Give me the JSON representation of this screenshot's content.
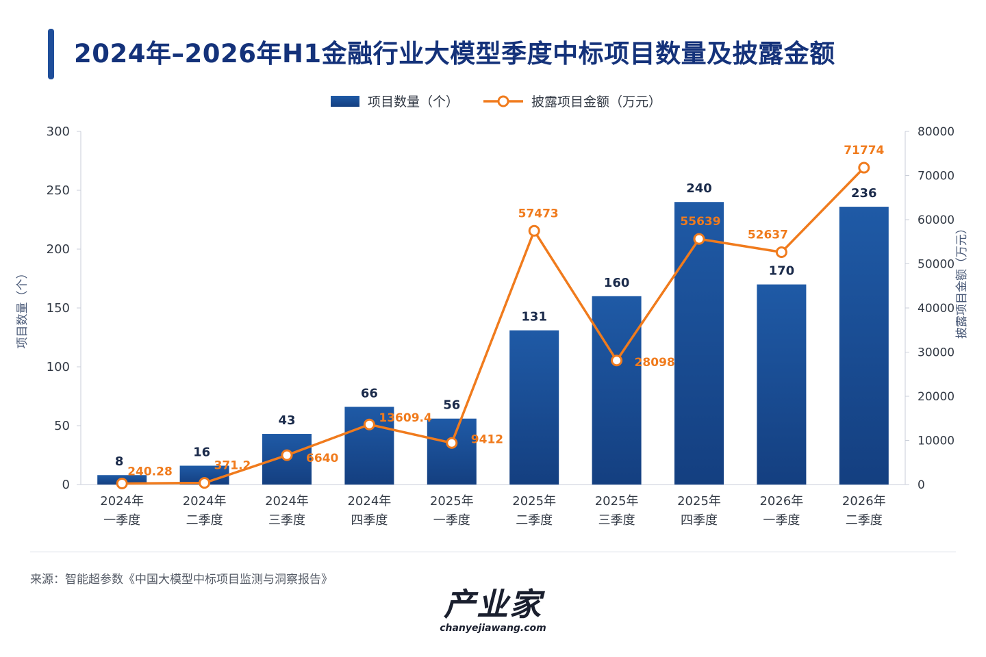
{
  "title": "2024年–2026年H1金融行业大模型季度中标项目数量及披露金额",
  "source": "来源：智能超参数《中国大模型中标项目监测与洞察报告》",
  "logo": {
    "main": "产业家",
    "sub": "chanyejiawang.com"
  },
  "colors": {
    "bar": "#1f5aa6",
    "bar_dark": "#143f80",
    "line": "#f07b1d",
    "axis_text": "#333a45",
    "grid": "#dfe3ea"
  },
  "chart_data": {
    "type": "bar",
    "categories": [
      [
        "2024年",
        "一季度"
      ],
      [
        "2024年",
        "二季度"
      ],
      [
        "2024年",
        "三季度"
      ],
      [
        "2024年",
        "四季度"
      ],
      [
        "2025年",
        "一季度"
      ],
      [
        "2025年",
        "二季度"
      ],
      [
        "2025年",
        "三季度"
      ],
      [
        "2025年",
        "四季度"
      ],
      [
        "2026年",
        "一季度"
      ],
      [
        "2026年",
        "二季度"
      ]
    ],
    "legend_placement": "top-center",
    "series": [
      {
        "name": "项目数量（个）",
        "type": "bar",
        "axis": "left",
        "values": [
          8,
          16,
          43,
          66,
          56,
          131,
          160,
          240,
          170,
          236
        ],
        "labels": [
          "8",
          "16",
          "43",
          "66",
          "56",
          "131",
          "160",
          "240",
          "170",
          "236"
        ]
      },
      {
        "name": "披露项目金额（万元）",
        "type": "line",
        "axis": "right",
        "values": [
          240.28,
          371.2,
          6640,
          13609.4,
          9412,
          57473,
          28098,
          55639,
          52637,
          71774
        ],
        "labels": [
          "240.28",
          "371.2",
          "6640",
          "13609.4",
          "9412",
          "57473",
          "28098",
          "55639",
          "52637",
          "71774"
        ]
      }
    ],
    "y_left": {
      "label": "项目数量（个）",
      "range": [
        0,
        300
      ],
      "ticks": [
        "0",
        "50",
        "100",
        "150",
        "200",
        "250",
        "300"
      ]
    },
    "y_right": {
      "label": "披露项目金额（万元）",
      "range": [
        0,
        80000
      ],
      "ticks": [
        "0",
        "10000",
        "20000",
        "30000",
        "40000",
        "50000",
        "60000",
        "70000",
        "80000"
      ]
    }
  }
}
